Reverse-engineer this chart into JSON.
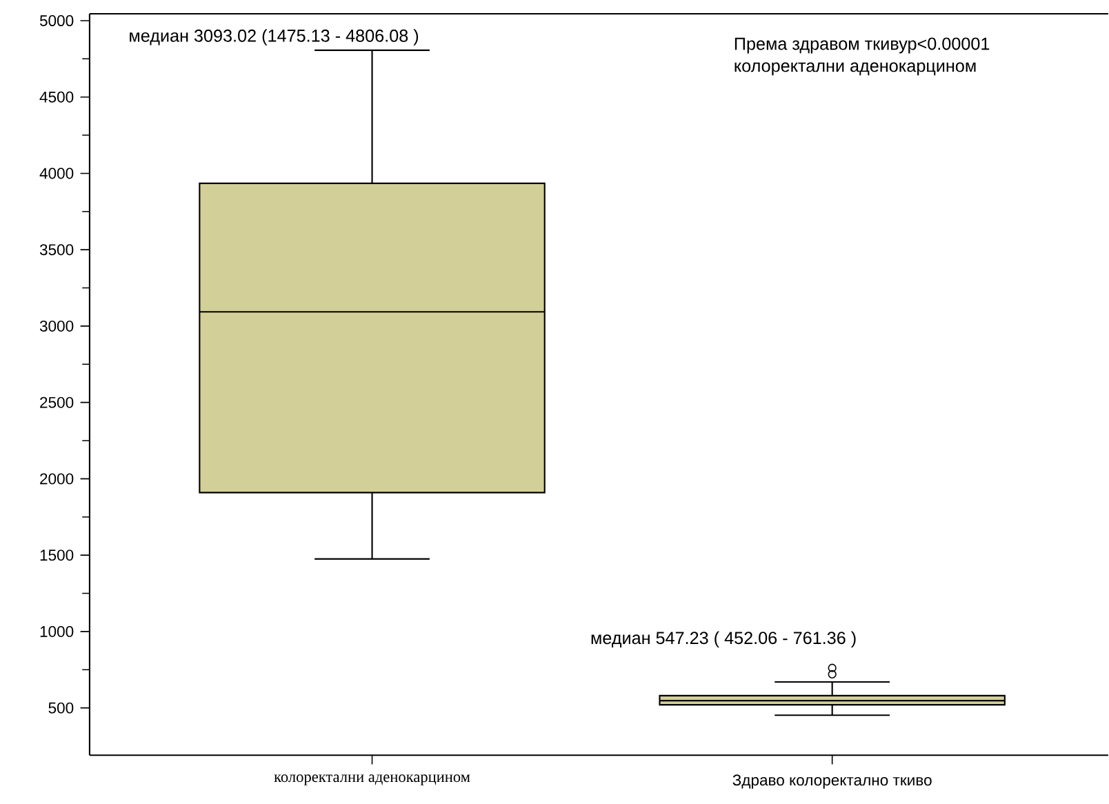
{
  "chart_data": {
    "type": "box",
    "categories": [
      "колоректални аденокарцином",
      "Здраво колоректално ткиво"
    ],
    "boxes": [
      {
        "low": 1475.13,
        "q1": 1910,
        "median": 3093.02,
        "q3": 3935,
        "high": 4806.08
      },
      {
        "low": 452.06,
        "q1": 520,
        "median": 547.23,
        "q3": 580,
        "high": 670,
        "outliers": [
          761.36,
          720
        ]
      }
    ],
    "color": "#d3cf98",
    "marker": "circle",
    "ylim": [
      190,
      5045
    ],
    "yticks": [
      500,
      1000,
      1500,
      2000,
      2500,
      3000,
      3500,
      4000,
      4500,
      5000
    ],
    "annotations": [
      "медиан 3093.02  (1475.13 - 4806.08 )",
      "медиан 547.23 ( 452.06 - 761.36 )",
      "Према здравом ткивур<0.00001",
      "колоректални аденокарцином"
    ]
  }
}
